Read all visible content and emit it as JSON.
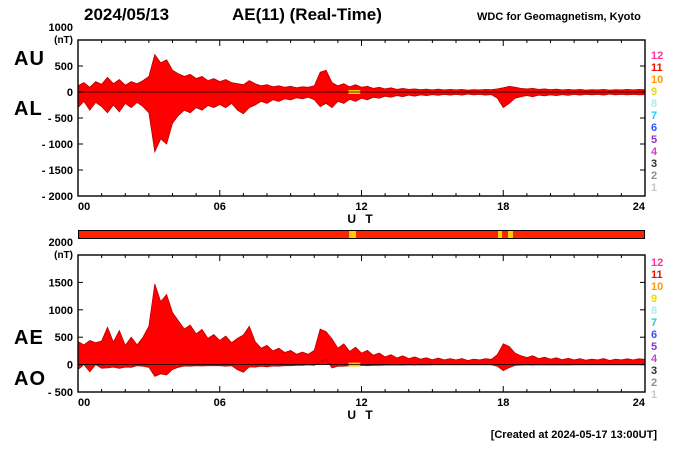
{
  "header": {
    "date": "2024/05/13",
    "title": "AE(11) (Real-Time)",
    "source": "WDC for Geomagnetism, Kyoto"
  },
  "footer": {
    "created": "[Created at 2024-05-17 13:00UT]"
  },
  "trace_color": "#ff0000",
  "trace_edge_color": "#bb0000",
  "highlight_color": "#ffcc00",
  "station_scale": {
    "description": "number of stations color scale",
    "values": [
      "12",
      "11",
      "10",
      "9",
      "8",
      "7",
      "6",
      "5",
      "4",
      "3",
      "2",
      "1"
    ],
    "colors": [
      "#ff3399",
      "#ee1100",
      "#ff9900",
      "#eedd00",
      "#aaeeee",
      "#22ccee",
      "#3355ff",
      "#8833cc",
      "#cc44cc",
      "#303030",
      "#909090",
      "#c8c8c8"
    ]
  },
  "status_bar": {
    "base_color": "#ff2200",
    "segments": [
      {
        "start": 11.45,
        "end": 11.75,
        "color": "#ffcc00"
      },
      {
        "start": 17.78,
        "end": 17.95,
        "color": "#ffcc00"
      },
      {
        "start": 18.2,
        "end": 18.42,
        "color": "#ffcc00"
      }
    ]
  },
  "chart_data": [
    {
      "type": "area",
      "panel": "AU-AL",
      "left_labels": [
        "AU",
        "AL"
      ],
      "unit_label": "(nT)",
      "xlabel": "U T",
      "grid": false,
      "xlim": [
        0,
        24
      ],
      "ylim": [
        -2000,
        1000
      ],
      "x_start_hours": 0,
      "x_step_hours": 0.25,
      "yticks": [
        {
          "label": "1000",
          "value": 1000
        },
        {
          "label": "500",
          "value": 500
        },
        {
          "label": "0",
          "value": 0
        },
        {
          "label": "- 500",
          "value": -500
        },
        {
          "label": "- 1000",
          "value": -1000
        },
        {
          "label": "- 1500",
          "value": -1500
        },
        {
          "label": "- 2000",
          "value": -2000
        }
      ],
      "xticks": [
        {
          "label": "00",
          "value": 0
        },
        {
          "label": "06",
          "value": 6
        },
        {
          "label": "12",
          "value": 12
        },
        {
          "label": "18",
          "value": 18
        },
        {
          "label": "24",
          "value": 24
        }
      ],
      "highlight_segments": [
        {
          "start": 11.45,
          "end": 11.95
        }
      ],
      "series": [
        {
          "name": "AU",
          "values": [
            120,
            180,
            90,
            200,
            150,
            280,
            160,
            240,
            130,
            200,
            160,
            220,
            300,
            720,
            560,
            620,
            420,
            350,
            300,
            340,
            260,
            300,
            220,
            260,
            200,
            240,
            180,
            160,
            140,
            220,
            160,
            120,
            140,
            100,
            120,
            90,
            110,
            80,
            100,
            90,
            120,
            380,
            420,
            180,
            120,
            160,
            100,
            140,
            90,
            110,
            70,
            90,
            60,
            80,
            50,
            70,
            50,
            60,
            45,
            55,
            40,
            55,
            40,
            50,
            40,
            50,
            35,
            45,
            40,
            50,
            45,
            60,
            80,
            110,
            90,
            70,
            60,
            70,
            50,
            60,
            45,
            55,
            40,
            50,
            40,
            50,
            35,
            45,
            40,
            50,
            35,
            45,
            40,
            50,
            40,
            50,
            45
          ]
        },
        {
          "name": "AL",
          "values": [
            -300,
            -180,
            -350,
            -200,
            -280,
            -400,
            -250,
            -380,
            -220,
            -300,
            -200,
            -280,
            -400,
            -1150,
            -900,
            -1000,
            -600,
            -450,
            -350,
            -400,
            -300,
            -350,
            -260,
            -300,
            -240,
            -300,
            -220,
            -350,
            -420,
            -300,
            -250,
            -180,
            -220,
            -150,
            -180,
            -130,
            -150,
            -110,
            -130,
            -100,
            -150,
            -280,
            -220,
            -300,
            -180,
            -220,
            -140,
            -180,
            -120,
            -150,
            -100,
            -120,
            -80,
            -100,
            -70,
            -90,
            -60,
            -80,
            -55,
            -70,
            -50,
            -65,
            -45,
            -60,
            -45,
            -60,
            -40,
            -55,
            -45,
            -60,
            -50,
            -120,
            -300,
            -220,
            -120,
            -90,
            -70,
            -90,
            -60,
            -75,
            -55,
            -70,
            -50,
            -65,
            -45,
            -60,
            -45,
            -55,
            -45,
            -60,
            -40,
            -55,
            -45,
            -55,
            -45,
            -55,
            -50
          ]
        }
      ]
    },
    {
      "type": "area",
      "panel": "AE-AO",
      "left_labels": [
        "AE",
        "AO"
      ],
      "unit_label": "(nT)",
      "xlabel": "U T",
      "grid": false,
      "xlim": [
        0,
        24
      ],
      "ylim": [
        -500,
        2000
      ],
      "x_start_hours": 0,
      "x_step_hours": 0.25,
      "yticks": [
        {
          "label": "2000",
          "value": 2000
        },
        {
          "label": "1500",
          "value": 1500
        },
        {
          "label": "1000",
          "value": 1000
        },
        {
          "label": "500",
          "value": 500
        },
        {
          "label": "0",
          "value": 0
        },
        {
          "label": "- 500",
          "value": -500
        }
      ],
      "xticks": [
        {
          "label": "00",
          "value": 0
        },
        {
          "label": "06",
          "value": 6
        },
        {
          "label": "12",
          "value": 12
        },
        {
          "label": "18",
          "value": 18
        },
        {
          "label": "24",
          "value": 24
        }
      ],
      "highlight_segments": [
        {
          "start": 11.45,
          "end": 11.95
        }
      ],
      "series": [
        {
          "name": "AE",
          "values": [
            420,
            360,
            440,
            400,
            430,
            680,
            410,
            620,
            350,
            500,
            360,
            500,
            700,
            1470,
            1150,
            1280,
            950,
            800,
            650,
            720,
            560,
            640,
            480,
            550,
            440,
            520,
            400,
            480,
            540,
            700,
            420,
            300,
            350,
            250,
            300,
            220,
            260,
            190,
            230,
            190,
            260,
            650,
            600,
            470,
            300,
            380,
            240,
            320,
            210,
            260,
            170,
            210,
            140,
            180,
            120,
            160,
            110,
            140,
            100,
            125,
            90,
            120,
            85,
            110,
            85,
            110,
            75,
            100,
            85,
            110,
            95,
            180,
            380,
            330,
            210,
            160,
            130,
            160,
            110,
            135,
            100,
            125,
            90,
            115,
            85,
            110,
            80,
            100,
            85,
            110,
            75,
            100,
            85,
            105,
            85,
            105,
            95
          ]
        },
        {
          "name": "AO",
          "values": [
            -90,
            0,
            -130,
            0,
            -65,
            -60,
            -45,
            -70,
            -45,
            -50,
            -20,
            -30,
            -50,
            -215,
            -170,
            -190,
            -90,
            -50,
            -25,
            -30,
            -20,
            -25,
            -20,
            -20,
            -20,
            -30,
            -20,
            -95,
            -140,
            -40,
            -45,
            -30,
            -40,
            -25,
            -30,
            -20,
            -20,
            -15,
            -15,
            -5,
            -15,
            50,
            100,
            -60,
            -30,
            -30,
            -20,
            -20,
            -15,
            -20,
            -15,
            -15,
            -10,
            -10,
            -10,
            -10,
            -5,
            -10,
            -5,
            -8,
            -5,
            -5,
            -3,
            -5,
            -3,
            -5,
            -3,
            -5,
            -3,
            -5,
            -3,
            -30,
            -110,
            -55,
            -15,
            -10,
            -5,
            -10,
            -5,
            -8,
            -5,
            -8,
            -5,
            -8,
            -3,
            -5,
            -5,
            -5,
            -3,
            -5,
            -3,
            -5,
            -3,
            -3,
            -3,
            -3,
            -3
          ]
        }
      ]
    }
  ]
}
